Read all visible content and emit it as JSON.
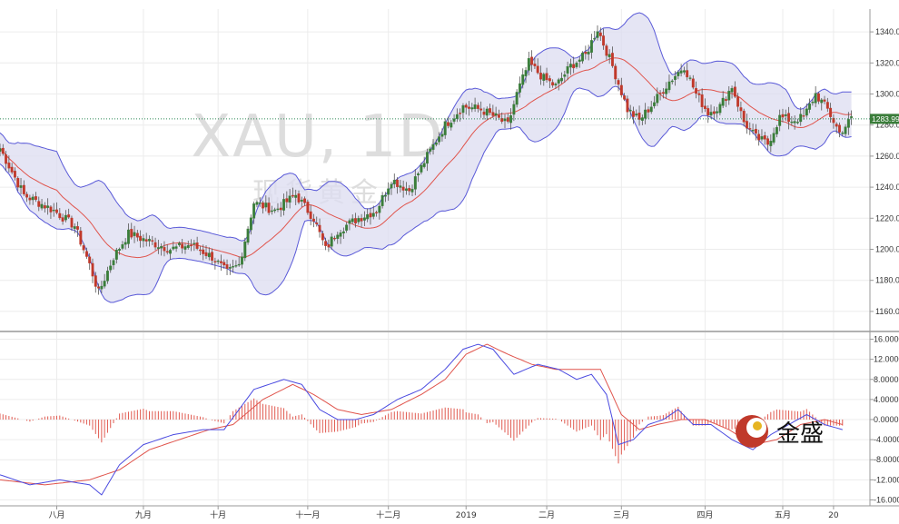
{
  "chart_data": [
    {
      "type": "candlestick",
      "watermark_title": "XAU, 1D",
      "watermark_subtitle": "现货黄金",
      "current_price_label": "1283.99",
      "current_price": 1283.99,
      "ylim": [
        1150,
        1350
      ],
      "y_ticks": [
        "1340.0",
        "1320.0",
        "1300.0",
        "1280.0",
        "1260.0",
        "1240.0",
        "1220.0",
        "1200.0",
        "1180.0",
        "1160.0"
      ],
      "x_ticks": [
        "八月",
        "九月",
        "十月",
        "十一月",
        "十二月",
        "2019",
        "二月",
        "三月",
        "四月",
        "五月",
        "20"
      ],
      "indicators": [
        "Bollinger Bands",
        "Moving Average"
      ],
      "colors": {
        "up": "#3a7d3a",
        "down": "#c0392b",
        "band_fill": "#dcdcf0",
        "band_line": "#5a5ad8",
        "ma_line": "#e0544c"
      },
      "anchors": [
        [
          0,
          1265
        ],
        [
          8,
          1235
        ],
        [
          18,
          1225
        ],
        [
          25,
          1215
        ],
        [
          30,
          1190
        ],
        [
          33,
          1172
        ],
        [
          38,
          1195
        ],
        [
          43,
          1210
        ],
        [
          50,
          1205
        ],
        [
          57,
          1200
        ],
        [
          64,
          1203
        ],
        [
          71,
          1195
        ],
        [
          76,
          1185
        ],
        [
          80,
          1190
        ],
        [
          85,
          1230
        ],
        [
          92,
          1225
        ],
        [
          99,
          1235
        ],
        [
          105,
          1220
        ],
        [
          109,
          1200
        ],
        [
          113,
          1212
        ],
        [
          120,
          1220
        ],
        [
          126,
          1225
        ],
        [
          131,
          1245
        ],
        [
          137,
          1238
        ],
        [
          143,
          1260
        ],
        [
          149,
          1280
        ],
        [
          155,
          1292
        ],
        [
          161,
          1290
        ],
        [
          166,
          1285
        ],
        [
          170,
          1280
        ],
        [
          173,
          1300
        ],
        [
          177,
          1320
        ],
        [
          182,
          1310
        ],
        [
          186,
          1305
        ],
        [
          191,
          1318
        ],
        [
          196,
          1325
        ],
        [
          200,
          1342
        ],
        [
          205,
          1318
        ],
        [
          210,
          1290
        ],
        [
          214,
          1283
        ],
        [
          219,
          1295
        ],
        [
          224,
          1308
        ],
        [
          229,
          1318
        ],
        [
          233,
          1300
        ],
        [
          237,
          1288
        ],
        [
          241,
          1292
        ],
        [
          245,
          1305
        ],
        [
          249,
          1282
        ],
        [
          253,
          1272
        ],
        [
          257,
          1268
        ],
        [
          261,
          1285
        ],
        [
          265,
          1283
        ],
        [
          269,
          1285
        ],
        [
          273,
          1300
        ],
        [
          277,
          1290
        ],
        [
          281,
          1275
        ],
        [
          285,
          1284
        ]
      ]
    },
    {
      "type": "line",
      "name": "MACD",
      "ylim": [
        -17,
        17
      ],
      "y_ticks": [
        "16.0000",
        "12.0000",
        "8.0000",
        "4.0000",
        "0.0000",
        "-4.0000",
        "-8.0000",
        "-12.0000",
        "-16.0000"
      ],
      "macd_anchors": [
        [
          0,
          -11
        ],
        [
          10,
          -13
        ],
        [
          20,
          -12
        ],
        [
          30,
          -13
        ],
        [
          34,
          -15
        ],
        [
          40,
          -9
        ],
        [
          48,
          -5
        ],
        [
          58,
          -3
        ],
        [
          68,
          -2
        ],
        [
          75,
          -2
        ],
        [
          85,
          6
        ],
        [
          95,
          8
        ],
        [
          101,
          7
        ],
        [
          107,
          2
        ],
        [
          113,
          0
        ],
        [
          119,
          0
        ],
        [
          125,
          1
        ],
        [
          133,
          4
        ],
        [
          141,
          6
        ],
        [
          149,
          10
        ],
        [
          155,
          14
        ],
        [
          160,
          15
        ],
        [
          165,
          14
        ],
        [
          172,
          9
        ],
        [
          180,
          11
        ],
        [
          187,
          10
        ],
        [
          193,
          8
        ],
        [
          198,
          9
        ],
        [
          203,
          5
        ],
        [
          207,
          -5
        ],
        [
          212,
          -4
        ],
        [
          217,
          -1
        ],
        [
          222,
          0
        ],
        [
          227,
          2
        ],
        [
          232,
          -1
        ],
        [
          238,
          -1
        ],
        [
          245,
          -4
        ],
        [
          252,
          -6
        ],
        [
          258,
          -3
        ],
        [
          264,
          -1
        ],
        [
          270,
          1
        ],
        [
          276,
          -1
        ],
        [
          282,
          -2
        ]
      ],
      "signal_anchors": [
        [
          0,
          -12
        ],
        [
          15,
          -13
        ],
        [
          30,
          -12
        ],
        [
          40,
          -10
        ],
        [
          50,
          -6
        ],
        [
          60,
          -4
        ],
        [
          70,
          -2
        ],
        [
          78,
          -1
        ],
        [
          88,
          4
        ],
        [
          98,
          7
        ],
        [
          105,
          5
        ],
        [
          113,
          2
        ],
        [
          121,
          1
        ],
        [
          131,
          2
        ],
        [
          141,
          5
        ],
        [
          149,
          8
        ],
        [
          156,
          13
        ],
        [
          163,
          15
        ],
        [
          170,
          13
        ],
        [
          178,
          11
        ],
        [
          186,
          10
        ],
        [
          194,
          10
        ],
        [
          201,
          10
        ],
        [
          208,
          1
        ],
        [
          214,
          -2
        ],
        [
          220,
          -1
        ],
        [
          228,
          0
        ],
        [
          236,
          0
        ],
        [
          244,
          -2
        ],
        [
          252,
          -5
        ],
        [
          260,
          -4
        ],
        [
          268,
          -1
        ],
        [
          276,
          0
        ],
        [
          282,
          -1
        ]
      ]
    }
  ],
  "logo": {
    "text": "金盛"
  }
}
